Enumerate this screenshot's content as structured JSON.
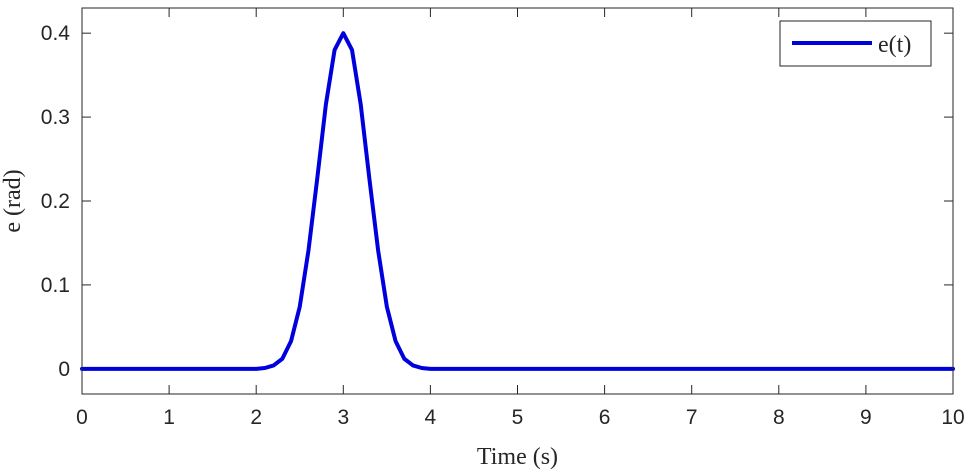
{
  "chart_data": {
    "type": "line",
    "xlabel": "Time (s)",
    "ylabel": "e (rad)",
    "xlim": [
      0,
      10
    ],
    "ylim": [
      -0.03,
      0.43
    ],
    "grid": false,
    "legend_position": "top-right",
    "x_ticks": [
      0,
      1,
      2,
      3,
      4,
      5,
      6,
      7,
      8,
      9,
      10
    ],
    "x_tick_labels": [
      "0",
      "1",
      "2",
      "3",
      "4",
      "5",
      "6",
      "7",
      "8",
      "9",
      "10"
    ],
    "y_ticks": [
      0,
      0.1,
      0.2,
      0.3,
      0.4
    ],
    "y_tick_labels": [
      "0",
      "0.1",
      "0.2",
      "0.3",
      "0.4"
    ],
    "series": [
      {
        "name": "e(t)",
        "color": "#0000dd",
        "x": [
          0,
          1,
          2,
          2.1,
          2.2,
          2.3,
          2.4,
          2.5,
          2.6,
          2.7,
          2.8,
          2.9,
          3.0,
          3.1,
          3.2,
          3.3,
          3.4,
          3.5,
          3.6,
          3.7,
          3.8,
          3.9,
          4.0,
          5,
          6,
          7,
          8,
          9,
          10
        ],
        "y": [
          0,
          0,
          0.0,
          0.001,
          0.004,
          0.012,
          0.033,
          0.074,
          0.141,
          0.226,
          0.315,
          0.38,
          0.4,
          0.38,
          0.315,
          0.226,
          0.141,
          0.074,
          0.033,
          0.012,
          0.004,
          0.001,
          0.0,
          0,
          0,
          0,
          0,
          0,
          0
        ]
      }
    ]
  }
}
